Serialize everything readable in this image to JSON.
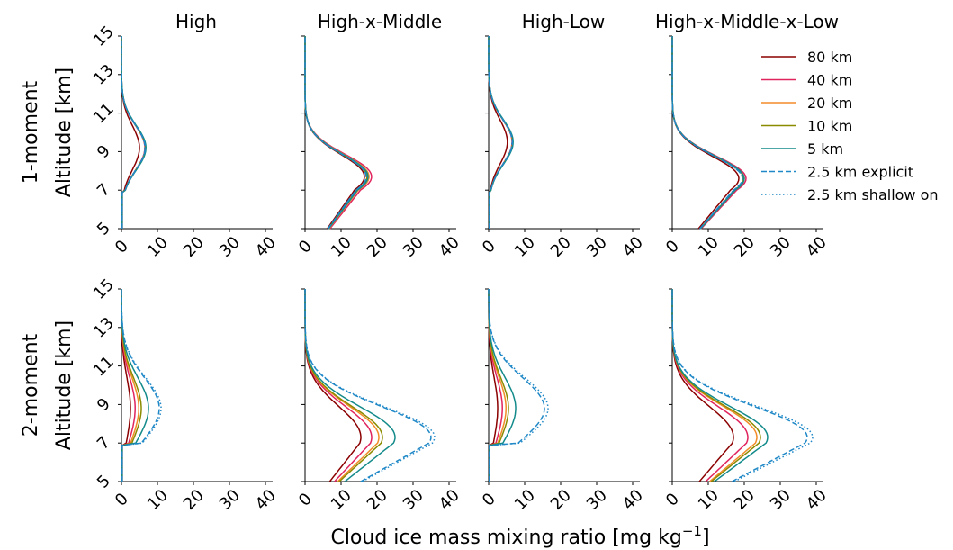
{
  "figure": {
    "xlabel": "Cloud ice mass mixing ratio [mg kg",
    "xlabel_sup": "−1",
    "xlabel_close": "]",
    "ylabel": "Altitude [km]",
    "row_labels": [
      "1-moment",
      "2-moment"
    ],
    "column_titles": [
      "High",
      "High-x-Middle",
      "High-Low",
      "High-x-Middle-x-Low"
    ],
    "xticks": [
      "0",
      "10",
      "20",
      "30",
      "40"
    ],
    "yticks": [
      "5",
      "7",
      "9",
      "11",
      "13",
      "15"
    ]
  },
  "legend": [
    {
      "label": "80 km",
      "color": "#8b0000",
      "dash": "solid"
    },
    {
      "label": "40 km",
      "color": "#e0245e",
      "dash": "solid"
    },
    {
      "label": "20 km",
      "color": "#f28c28",
      "dash": "solid"
    },
    {
      "label": "10 km",
      "color": "#8b8b00",
      "dash": "solid"
    },
    {
      "label": "5 km",
      "color": "#138a8a",
      "dash": "solid"
    },
    {
      "label": "2.5 km explicit",
      "color": "#1f88c7",
      "dash": "dashed"
    },
    {
      "label": "2.5 km shallow on",
      "color": "#1f88c7",
      "dash": "dotted"
    }
  ],
  "chart_data": {
    "type": "line",
    "xlim": [
      0,
      42
    ],
    "ylim": [
      5,
      15
    ],
    "grid": false,
    "legend_position": "right of top-right panel",
    "panels": [
      {
        "row": 0,
        "col": 0,
        "peak_alt": 9.2,
        "series_peaks": [
          5.0,
          6.5,
          6.6,
          6.7,
          6.8,
          6.6,
          6.5
        ]
      },
      {
        "row": 0,
        "col": 1,
        "peak_alt": 7.7,
        "series_peaks": [
          16.5,
          18.5,
          17.8,
          17.2,
          17.5,
          17.0,
          17.0
        ]
      },
      {
        "row": 0,
        "col": 2,
        "peak_alt": 9.5,
        "series_peaks": [
          5.2,
          6.5,
          6.6,
          6.7,
          6.8,
          6.6,
          6.5
        ]
      },
      {
        "row": 0,
        "col": 3,
        "peak_alt": 7.6,
        "series_peaks": [
          18.5,
          20.5,
          20.0,
          19.8,
          20.0,
          19.5,
          19.5
        ]
      },
      {
        "row": 1,
        "col": 0,
        "peak_alt": 8.8,
        "series_peaks": [
          2.5,
          3.8,
          4.8,
          5.5,
          7.5,
          10.5,
          11.0
        ]
      },
      {
        "row": 1,
        "col": 1,
        "peak_alt": 7.3,
        "series_peaks": [
          15.5,
          18.5,
          20.5,
          21.5,
          25.0,
          35.0,
          36.0
        ]
      },
      {
        "row": 1,
        "col": 2,
        "peak_alt": 8.8,
        "series_peaks": [
          2.5,
          3.8,
          4.8,
          5.5,
          7.5,
          15.5,
          16.5
        ]
      },
      {
        "row": 1,
        "col": 3,
        "peak_alt": 7.3,
        "series_peaks": [
          17.0,
          21.0,
          23.5,
          24.5,
          26.5,
          37.5,
          39.0
        ]
      }
    ]
  }
}
